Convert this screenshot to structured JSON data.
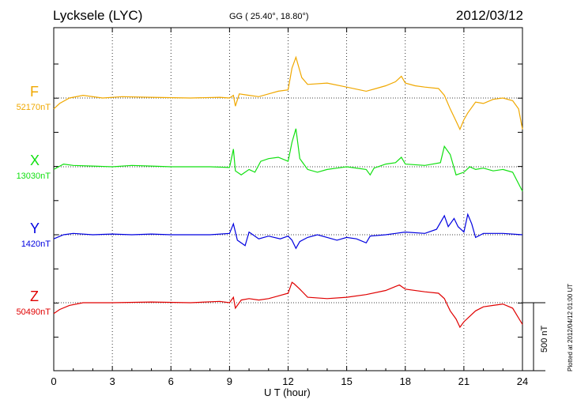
{
  "header": {
    "station": "Lycksele (LYC)",
    "coords": "GG ( 25.40°,  18.80°)",
    "date": "2012/03/12"
  },
  "side": {
    "plotted": "Plotted at 2012/04/12 01:00 UT",
    "scale": "500 nT"
  },
  "chart_data": {
    "type": "line",
    "xlabel": "U T (hour)",
    "xlim": [
      0,
      24
    ],
    "xticks": [
      "0",
      "3",
      "6",
      "9",
      "12",
      "15",
      "18",
      "21",
      "24"
    ],
    "grid": true,
    "scale_bar_nT": 500,
    "series": [
      {
        "name": "F",
        "baseline": "52170nT",
        "color": "#f0a800",
        "points": [
          [
            0,
            -80
          ],
          [
            0.3,
            -40
          ],
          [
            0.8,
            0
          ],
          [
            1.5,
            20
          ],
          [
            2.5,
            0
          ],
          [
            3.5,
            10
          ],
          [
            5,
            5
          ],
          [
            7,
            0
          ],
          [
            8.5,
            5
          ],
          [
            9,
            0
          ],
          [
            9.2,
            20
          ],
          [
            9.3,
            -60
          ],
          [
            9.5,
            30
          ],
          [
            10,
            20
          ],
          [
            10.5,
            10
          ],
          [
            11,
            30
          ],
          [
            11.5,
            50
          ],
          [
            12,
            60
          ],
          [
            12.2,
            220
          ],
          [
            12.4,
            300
          ],
          [
            12.7,
            150
          ],
          [
            13,
            100
          ],
          [
            14,
            110
          ],
          [
            15,
            80
          ],
          [
            16,
            50
          ],
          [
            16.5,
            70
          ],
          [
            17,
            90
          ],
          [
            17.5,
            120
          ],
          [
            17.8,
            160
          ],
          [
            18,
            110
          ],
          [
            18.5,
            90
          ],
          [
            19,
            80
          ],
          [
            19.7,
            70
          ],
          [
            20,
            20
          ],
          [
            20.3,
            -80
          ],
          [
            20.6,
            -170
          ],
          [
            20.8,
            -230
          ],
          [
            21,
            -160
          ],
          [
            21.2,
            -110
          ],
          [
            21.6,
            -30
          ],
          [
            22,
            -40
          ],
          [
            22.5,
            -10
          ],
          [
            23,
            0
          ],
          [
            23.5,
            -20
          ],
          [
            23.8,
            -80
          ],
          [
            24,
            -230
          ]
        ]
      },
      {
        "name": "X",
        "baseline": "13030nT",
        "color": "#10e010",
        "points": [
          [
            0,
            -20
          ],
          [
            0.5,
            20
          ],
          [
            1,
            10
          ],
          [
            2,
            5
          ],
          [
            3,
            0
          ],
          [
            4,
            10
          ],
          [
            5,
            5
          ],
          [
            6,
            0
          ],
          [
            8,
            0
          ],
          [
            9,
            -5
          ],
          [
            9.2,
            130
          ],
          [
            9.3,
            -30
          ],
          [
            9.6,
            -60
          ],
          [
            10,
            -20
          ],
          [
            10.3,
            -40
          ],
          [
            10.6,
            40
          ],
          [
            11,
            60
          ],
          [
            11.5,
            70
          ],
          [
            12,
            40
          ],
          [
            12.2,
            180
          ],
          [
            12.4,
            280
          ],
          [
            12.6,
            60
          ],
          [
            13,
            -20
          ],
          [
            13.5,
            -40
          ],
          [
            14,
            -20
          ],
          [
            14.5,
            -10
          ],
          [
            15,
            0
          ],
          [
            16,
            -20
          ],
          [
            16.2,
            -60
          ],
          [
            16.4,
            -10
          ],
          [
            17,
            20
          ],
          [
            17.5,
            30
          ],
          [
            17.8,
            70
          ],
          [
            18,
            20
          ],
          [
            19,
            10
          ],
          [
            19.8,
            30
          ],
          [
            20,
            150
          ],
          [
            20.3,
            90
          ],
          [
            20.6,
            -60
          ],
          [
            21,
            -40
          ],
          [
            21.3,
            0
          ],
          [
            21.6,
            -20
          ],
          [
            22,
            -10
          ],
          [
            22.5,
            -30
          ],
          [
            23,
            -20
          ],
          [
            23.5,
            -40
          ],
          [
            24,
            -180
          ]
        ]
      },
      {
        "name": "Y",
        "baseline": "1420nT",
        "color": "#0000e0",
        "points": [
          [
            0,
            -30
          ],
          [
            0.5,
            0
          ],
          [
            1,
            10
          ],
          [
            2,
            0
          ],
          [
            3,
            5
          ],
          [
            4,
            0
          ],
          [
            5,
            5
          ],
          [
            6,
            0
          ],
          [
            8,
            0
          ],
          [
            9,
            10
          ],
          [
            9.2,
            80
          ],
          [
            9.4,
            -40
          ],
          [
            9.8,
            -80
          ],
          [
            10,
            20
          ],
          [
            10.5,
            -30
          ],
          [
            11,
            -10
          ],
          [
            11.6,
            -30
          ],
          [
            12,
            -10
          ],
          [
            12.2,
            -40
          ],
          [
            12.4,
            -100
          ],
          [
            12.6,
            -50
          ],
          [
            13,
            -20
          ],
          [
            13.5,
            0
          ],
          [
            14,
            -20
          ],
          [
            14.5,
            -40
          ],
          [
            15,
            -20
          ],
          [
            15.5,
            -30
          ],
          [
            16,
            -60
          ],
          [
            16.2,
            -10
          ],
          [
            17,
            0
          ],
          [
            17.5,
            10
          ],
          [
            18,
            20
          ],
          [
            19,
            10
          ],
          [
            19.6,
            40
          ],
          [
            20,
            140
          ],
          [
            20.2,
            60
          ],
          [
            20.5,
            120
          ],
          [
            20.7,
            60
          ],
          [
            21,
            20
          ],
          [
            21.2,
            150
          ],
          [
            21.4,
            80
          ],
          [
            21.6,
            -20
          ],
          [
            22,
            10
          ],
          [
            23,
            10
          ],
          [
            24,
            0
          ]
        ]
      },
      {
        "name": "Z",
        "baseline": "50490nT",
        "color": "#e00000",
        "points": [
          [
            0,
            -80
          ],
          [
            0.3,
            -50
          ],
          [
            0.8,
            -20
          ],
          [
            1.5,
            0
          ],
          [
            3,
            0
          ],
          [
            5,
            5
          ],
          [
            7,
            0
          ],
          [
            8.5,
            10
          ],
          [
            9,
            0
          ],
          [
            9.2,
            40
          ],
          [
            9.3,
            -40
          ],
          [
            9.6,
            20
          ],
          [
            10,
            30
          ],
          [
            10.5,
            20
          ],
          [
            11,
            30
          ],
          [
            11.5,
            50
          ],
          [
            12,
            70
          ],
          [
            12.2,
            150
          ],
          [
            12.3,
            140
          ],
          [
            12.6,
            100
          ],
          [
            13,
            40
          ],
          [
            14,
            30
          ],
          [
            15,
            40
          ],
          [
            16,
            60
          ],
          [
            17,
            90
          ],
          [
            17.5,
            120
          ],
          [
            17.7,
            130
          ],
          [
            18,
            100
          ],
          [
            19,
            80
          ],
          [
            19.7,
            70
          ],
          [
            20,
            30
          ],
          [
            20.3,
            -60
          ],
          [
            20.6,
            -120
          ],
          [
            20.8,
            -180
          ],
          [
            21,
            -140
          ],
          [
            21.3,
            -100
          ],
          [
            21.6,
            -60
          ],
          [
            22,
            -30
          ],
          [
            22.5,
            -20
          ],
          [
            23,
            -10
          ],
          [
            23.5,
            -40
          ],
          [
            24,
            -160
          ]
        ]
      }
    ]
  }
}
